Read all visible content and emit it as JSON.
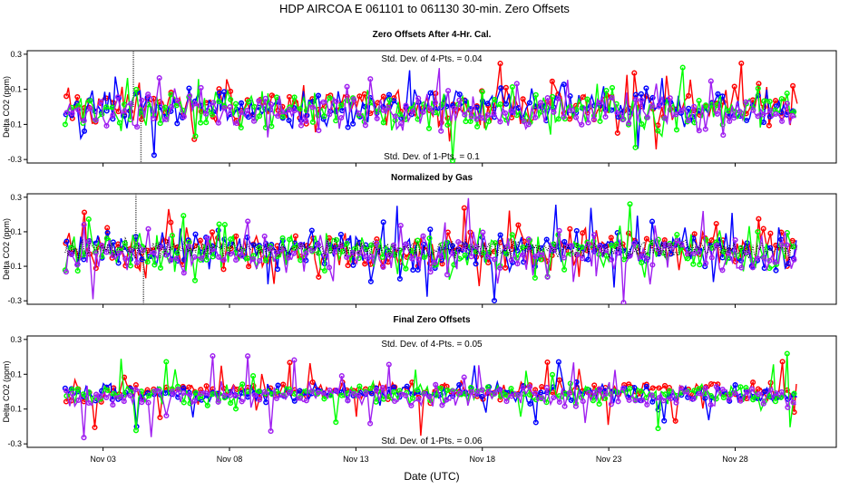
{
  "title": "HDP   AIRCOA E   061101 to 061130   30-min. Zero Offsets",
  "xlabel": "Date (UTC)",
  "x_ticks": [
    "Nov 03",
    "Nov 08",
    "Nov 13",
    "Nov 18",
    "Nov 23",
    "Nov 28"
  ],
  "colors": {
    "gas1": "#ff0000",
    "gas2": "#0000ff",
    "gas3": "#00ff00",
    "gas4": "#a020f0",
    "mean": "#000000"
  },
  "chart_data": [
    {
      "type": "scatter",
      "title": "Zero Offsets After 4-Hr. Cal.",
      "ylabel": "Delta CO2 (ppm)",
      "ylim": [
        -0.32,
        0.32
      ],
      "yticks": [
        "0.3",
        "0.1",
        "-0.1",
        "-0.3"
      ],
      "xlim_days": [
        0,
        32
      ],
      "data_days": [
        1.5,
        30.5
      ],
      "series_names": [
        "gas1",
        "gas2",
        "gas3",
        "gas4"
      ],
      "spread": 0.09,
      "upper_note": "Std. Dev. of 4-Pts. = 0.04",
      "lower_note": "Std. Dev. of 1-Pts. = 0.1",
      "spikes": [
        {
          "day": 4.2,
          "y": 0.32
        },
        {
          "day": 4.5,
          "y": -0.32
        }
      ]
    },
    {
      "type": "scatter",
      "title": "Normalized by Gas",
      "ylabel": "Delta CO2 (ppm)",
      "ylim": [
        -0.32,
        0.32
      ],
      "yticks": [
        "0.3",
        "0.1",
        "-0.1",
        "-0.3"
      ],
      "xlim_days": [
        0,
        32
      ],
      "data_days": [
        1.5,
        30.5
      ],
      "series_names": [
        "gas1",
        "gas2",
        "gas3",
        "gas4",
        "mean"
      ],
      "spread": 0.1,
      "upper_note": "",
      "lower_note": "",
      "spikes": [
        {
          "day": 4.3,
          "y": 0.32
        },
        {
          "day": 4.6,
          "y": -0.32
        }
      ]
    },
    {
      "type": "scatter",
      "title": "Final Zero Offsets",
      "ylabel": "Delta CO2 (ppm)",
      "ylim": [
        -0.32,
        0.32
      ],
      "yticks": [
        "0.3",
        "0.1",
        "-0.1",
        "-0.3"
      ],
      "xlim_days": [
        0,
        32
      ],
      "data_days": [
        1.5,
        30.5
      ],
      "series_names": [
        "gas1",
        "gas2",
        "gas3",
        "gas4"
      ],
      "spread": 0.05,
      "upper_note": "Std. Dev. of 4-Pts. = 0.05",
      "lower_note": "Std. Dev. of 1-Pts. = 0.06",
      "spikes": []
    }
  ]
}
